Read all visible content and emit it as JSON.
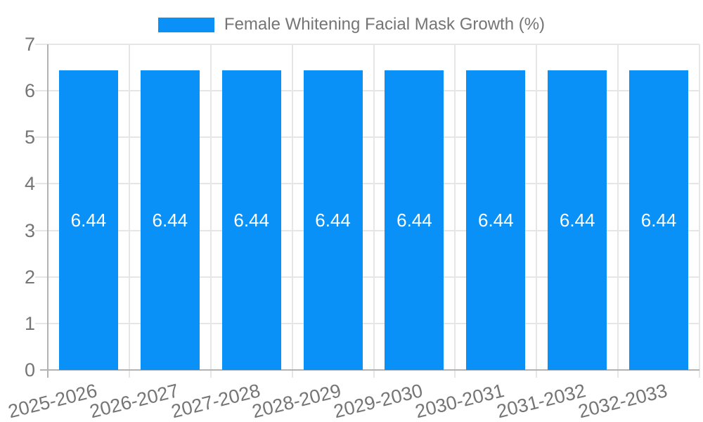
{
  "chart_data": {
    "type": "bar",
    "title": "Female Whitening Facial Mask Growth (%)",
    "legend": [
      "Female Whitening Facial Mask Growth (%)"
    ],
    "legend_position": "top",
    "categories": [
      "2025-2026",
      "2026-2027",
      "2027-2028",
      "2028-2029",
      "2029-2030",
      "2030-2031",
      "2031-2032",
      "2032-2033"
    ],
    "values": [
      6.44,
      6.44,
      6.44,
      6.44,
      6.44,
      6.44,
      6.44,
      6.44
    ],
    "value_label_decimals": 2,
    "xlabel": "",
    "ylabel": "",
    "ylim": [
      0,
      7
    ],
    "yticks": [
      0,
      1,
      2,
      3,
      4,
      5,
      6,
      7
    ],
    "grid": true,
    "colors": {
      "bar": "#0991f8",
      "bar_value_label": "#ffffff",
      "text": "#757575",
      "grid": "#e6e6e6",
      "axis": "#b3b3b3",
      "background": "#ffffff"
    }
  }
}
